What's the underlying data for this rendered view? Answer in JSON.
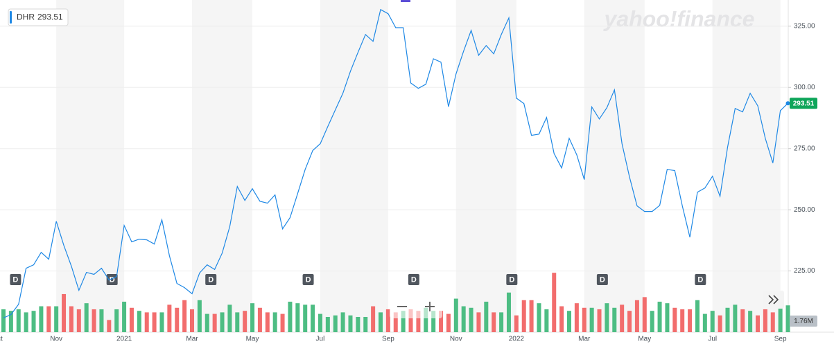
{
  "chart_data": {
    "type": "line",
    "symbol": "DHR",
    "last_price": 293.51,
    "watermark": "yahoo!finance",
    "volume_label": "1.76M",
    "categories": [
      "Oct",
      null,
      null,
      null,
      null,
      null,
      null,
      "Nov",
      null,
      null,
      null,
      null,
      null,
      null,
      null,
      null,
      "2021",
      null,
      null,
      null,
      null,
      null,
      null,
      null,
      null,
      "Mar",
      null,
      null,
      null,
      null,
      null,
      null,
      null,
      "May",
      null,
      null,
      null,
      null,
      null,
      null,
      null,
      null,
      "Jul",
      null,
      null,
      null,
      null,
      null,
      null,
      null,
      null,
      "Sep",
      null,
      null,
      null,
      null,
      null,
      null,
      null,
      null,
      "Nov",
      null,
      null,
      null,
      null,
      null,
      null,
      null,
      "2022",
      null,
      null,
      null,
      null,
      null,
      null,
      null,
      null,
      "Mar",
      null,
      null,
      null,
      null,
      null,
      null,
      null,
      "May",
      null,
      null,
      null,
      null,
      null,
      null,
      null,
      null,
      "Jul",
      null,
      null,
      null,
      null,
      null,
      null,
      null,
      null,
      "Sep",
      null
    ],
    "series": [
      {
        "name": "DHR",
        "color": "#1e88e5",
        "values": [
          205.8,
          207.2,
          211.4,
          226.1,
          227.5,
          232.6,
          229.8,
          245.3,
          235.5,
          227.0,
          217.1,
          224.4,
          223.6,
          226.1,
          221.3,
          222.7,
          243.6,
          236.9,
          238.0,
          237.7,
          236.0,
          245.9,
          231.2,
          219.9,
          218.2,
          215.7,
          224.2,
          227.5,
          225.6,
          232.3,
          243.1,
          259.5,
          253.8,
          258.6,
          253.5,
          252.7,
          256.1,
          242.2,
          246.8,
          256.6,
          266.5,
          274.2,
          277.0,
          284.0,
          290.8,
          297.6,
          306.6,
          314.3,
          321.6,
          318.8,
          331.8,
          330.1,
          324.4,
          324.4,
          301.8,
          299.6,
          301.3,
          311.7,
          310.3,
          292.1,
          305.5,
          314.8,
          323.3,
          313.1,
          317.1,
          313.7,
          321.6,
          328.4,
          295.6,
          293.4,
          280.4,
          280.9,
          287.7,
          273.0,
          267.1,
          279.2,
          272.5,
          262.3,
          292.0,
          287.1,
          291.7,
          299.0,
          277.0,
          263.4,
          251.6,
          249.3,
          249.3,
          251.8,
          266.5,
          266.0,
          251.6,
          238.8,
          257.2,
          258.9,
          263.7,
          255.5,
          275.6,
          291.4,
          290.0,
          297.6,
          292.5,
          279.2,
          269.1,
          290.5,
          293.51
        ]
      },
      {
        "name": "Volume",
        "up_color": "#4dbd83",
        "down_color": "#f26d6d",
        "axis": "y2",
        "values": [
          1.5,
          1.4,
          1.5,
          1.3,
          1.4,
          1.7,
          1.7,
          1.7,
          2.5,
          1.7,
          1.5,
          1.9,
          1.5,
          1.5,
          0.8,
          1.5,
          2.0,
          1.6,
          1.4,
          1.3,
          1.3,
          1.3,
          1.8,
          1.6,
          2.1,
          1.5,
          2.1,
          1.2,
          1.2,
          1.3,
          1.8,
          1.3,
          1.4,
          1.9,
          1.6,
          1.3,
          1.3,
          1.2,
          2.0,
          1.9,
          1.8,
          1.8,
          1.2,
          1.0,
          1.1,
          1.3,
          1.1,
          1.0,
          1.0,
          1.7,
          1.3,
          1.5,
          1.3,
          1.4,
          1.5,
          1.4,
          1.6,
          1.4,
          1.4,
          1.2,
          2.2,
          1.7,
          1.6,
          1.3,
          2.0,
          1.3,
          1.3,
          2.6,
          1.1,
          2.1,
          2.1,
          1.9,
          1.5,
          3.9,
          1.7,
          1.4,
          1.9,
          1.6,
          1.6,
          1.5,
          1.9,
          1.6,
          1.8,
          1.4,
          2.1,
          2.3,
          1.4,
          2.0,
          1.9,
          1.6,
          1.5,
          1.5,
          2.1,
          1.2,
          1.4,
          1.1,
          1.6,
          1.8,
          1.5,
          1.4,
          1.1,
          1.5,
          1.3,
          1.6,
          1.76
        ]
      }
    ],
    "ylim": [
      200,
      335.7
    ],
    "yticks": [
      {
        "value": 225,
        "label": "225.00"
      },
      {
        "value": 250,
        "label": "250.00"
      },
      {
        "value": 275,
        "label": "275.00"
      },
      {
        "value": 300,
        "label": "300.00"
      },
      {
        "value": 325,
        "label": "325.00"
      }
    ],
    "y2lim": [
      0,
      21.8
    ],
    "events": [
      {
        "label": "D",
        "x": 1.6
      },
      {
        "label": "D",
        "x": 14.4
      },
      {
        "label": "D",
        "x": 27.5
      },
      {
        "label": "D",
        "x": 40.4
      },
      {
        "label": "D",
        "x": 54.4
      },
      {
        "label": "D",
        "x": 67.4
      },
      {
        "label": "D",
        "x": 79.4
      },
      {
        "label": "D",
        "x": 92.4
      }
    ],
    "grid": true
  }
}
